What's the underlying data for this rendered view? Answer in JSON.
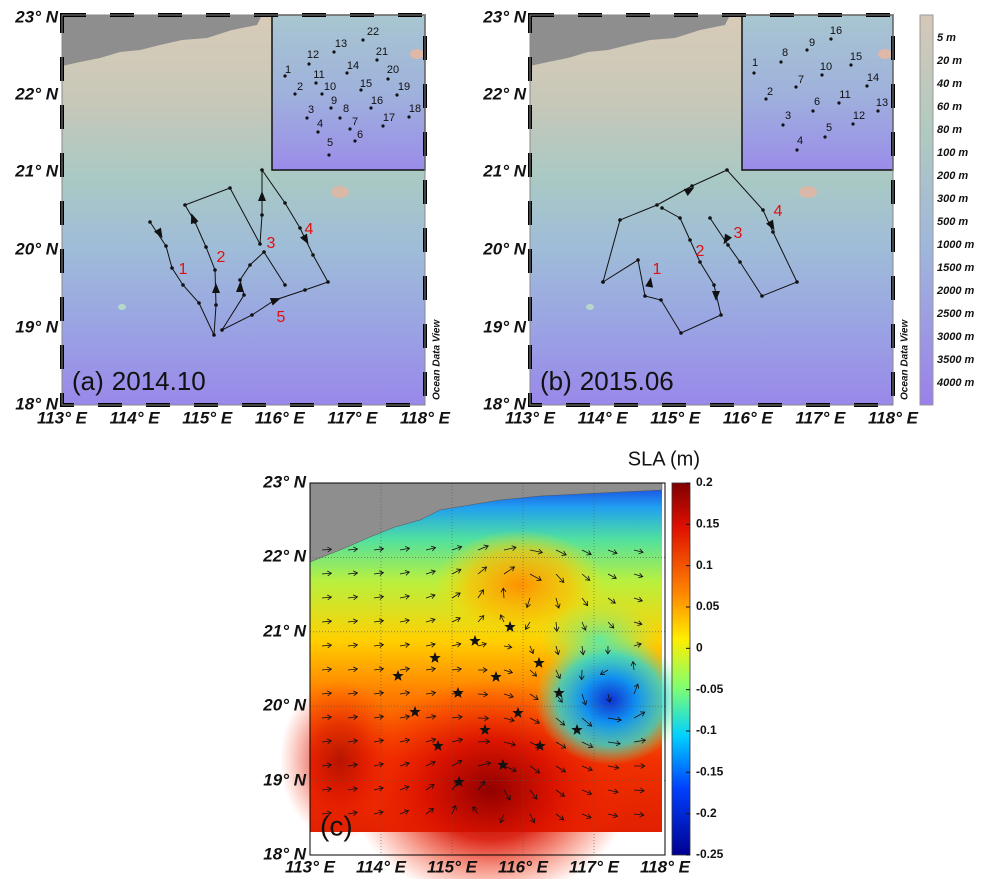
{
  "lat_labels": [
    "23° N",
    "22° N",
    "21° N",
    "20° N",
    "19° N",
    "18° N"
  ],
  "lon_labels": [
    "113° E",
    "114° E",
    "115° E",
    "116° E",
    "117° E",
    "118° E"
  ],
  "panel_a": {
    "label": "(a)",
    "date": "2014.10",
    "watermark": "Ocean Data View",
    "route_labels": [
      "1",
      "2",
      "3",
      "4",
      "5"
    ],
    "station_labels": [
      "1",
      "2",
      "3",
      "4",
      "5",
      "6",
      "7",
      "8",
      "9",
      "10",
      "11",
      "12",
      "13",
      "14",
      "15",
      "16",
      "17",
      "18",
      "19",
      "20",
      "21",
      "22"
    ]
  },
  "panel_b": {
    "label": "(b)",
    "date": "2015.06",
    "watermark": "Ocean Data View",
    "route_labels": [
      "1",
      "2",
      "3",
      "4"
    ],
    "station_labels": [
      "1",
      "2",
      "3",
      "4",
      "5",
      "6",
      "7",
      "8",
      "9",
      "10",
      "11",
      "12",
      "13",
      "14",
      "15",
      "16"
    ]
  },
  "depth_legend": [
    "5 m",
    "20 m",
    "40 m",
    "60 m",
    "80 m",
    "100 m",
    "200 m",
    "300 m",
    "500 m",
    "1000 m",
    "1500 m",
    "2000 m",
    "2500 m",
    "3000 m",
    "3500 m",
    "4000 m"
  ],
  "panel_c": {
    "label": "(c)",
    "colorbar": {
      "title": "SLA (m)",
      "lim": [
        -0.25,
        0.2
      ],
      "ticks": [
        0.2,
        0.15,
        0.1,
        0.05,
        0,
        -0.05,
        -0.1,
        -0.15,
        -0.2,
        -0.25
      ]
    }
  }
}
